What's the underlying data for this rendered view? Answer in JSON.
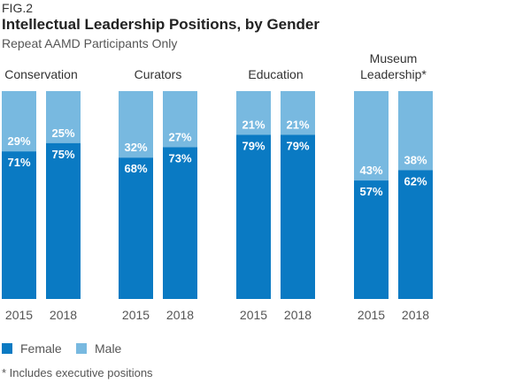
{
  "header": {
    "fig_label": "FIG.2",
    "title": "Intellectual Leadership Positions, by Gender",
    "subtitle": "Repeat AAMD Participants Only"
  },
  "footnote": "* Includes executive positions",
  "colors": {
    "female": "#0a7ac3",
    "male": "#78b9e0"
  },
  "chart_data": {
    "type": "bar",
    "stacked": true,
    "normalized_percent": true,
    "ylim": [
      0,
      100
    ],
    "groups": [
      {
        "name": "Conservation",
        "name_lines": [
          "Conservation"
        ],
        "bars": [
          {
            "year": "2015",
            "female": 71,
            "male": 29
          },
          {
            "year": "2018",
            "female": 75,
            "male": 25
          }
        ]
      },
      {
        "name": "Curators",
        "name_lines": [
          "Curators"
        ],
        "bars": [
          {
            "year": "2015",
            "female": 68,
            "male": 32
          },
          {
            "year": "2018",
            "female": 73,
            "male": 27
          }
        ]
      },
      {
        "name": "Education",
        "name_lines": [
          "Education"
        ],
        "bars": [
          {
            "year": "2015",
            "female": 79,
            "male": 21
          },
          {
            "year": "2018",
            "female": 79,
            "male": 21
          }
        ]
      },
      {
        "name": "Museum Leadership*",
        "name_lines": [
          "Museum",
          "Leadership*"
        ],
        "bars": [
          {
            "year": "2015",
            "female": 57,
            "male": 43
          },
          {
            "year": "2018",
            "female": 62,
            "male": 38
          }
        ]
      }
    ],
    "series": [
      {
        "name": "Female",
        "key": "female"
      },
      {
        "name": "Male",
        "key": "male"
      }
    ],
    "legend_position": "bottom-left"
  }
}
